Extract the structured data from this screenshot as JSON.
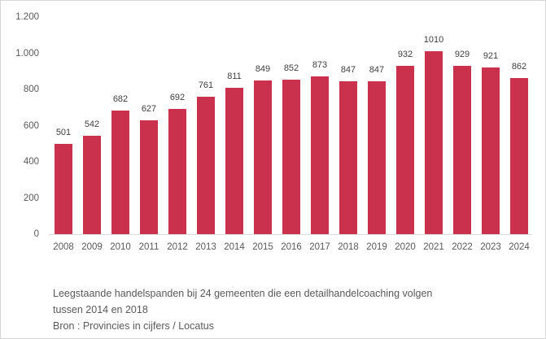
{
  "chart_data": {
    "type": "bar",
    "categories": [
      "2008",
      "2009",
      "2010",
      "2011",
      "2012",
      "2013",
      "2014",
      "2015",
      "2016",
      "2017",
      "2018",
      "2019",
      "2020",
      "2021",
      "2022",
      "2023",
      "2024"
    ],
    "values": [
      501,
      542,
      682,
      627,
      692,
      761,
      811,
      849,
      852,
      873,
      847,
      847,
      932,
      1010,
      929,
      921,
      862
    ],
    "value_labels": [
      "501",
      "542",
      "682",
      "627",
      "692",
      "761",
      "811",
      "849",
      "852",
      "873",
      "847",
      "847",
      "932",
      "1010",
      "929",
      "921",
      "862"
    ],
    "title": "Leegstaande handelspanden bij 24 gemeenten die een detailhandelcoaching volgen tussen 2014 en 2018",
    "source": "Bron : Provincies in cijfers / Locatus",
    "xlabel": "",
    "ylabel": "",
    "ylim": [
      0,
      1200
    ],
    "yticks": [
      {
        "value": 0,
        "label": "0"
      },
      {
        "value": 200,
        "label": "200"
      },
      {
        "value": 400,
        "label": "400"
      },
      {
        "value": 600,
        "label": "600"
      },
      {
        "value": 800,
        "label": "800"
      },
      {
        "value": 1000,
        "label": "1.000"
      },
      {
        "value": 1200,
        "label": "1.200"
      }
    ],
    "grid": false,
    "legend": "none",
    "data_labels": true,
    "bar_color": "#c9314c"
  },
  "caption": {
    "lines": [
      "Leegstaande handelspanden bij 24 gemeenten die een detailhandelcoaching volgen",
      "tussen 2014 en 2018",
      "Bron : Provincies in cijfers / Locatus"
    ]
  },
  "colors": {
    "bar": "#c9314c",
    "axis_line": "#d9d9d9",
    "tick_text": "#595959",
    "value_text": "#3f3f3f",
    "caption_text": "#595959",
    "panel_border": "#d6d6d6",
    "background": "#ffffff"
  }
}
